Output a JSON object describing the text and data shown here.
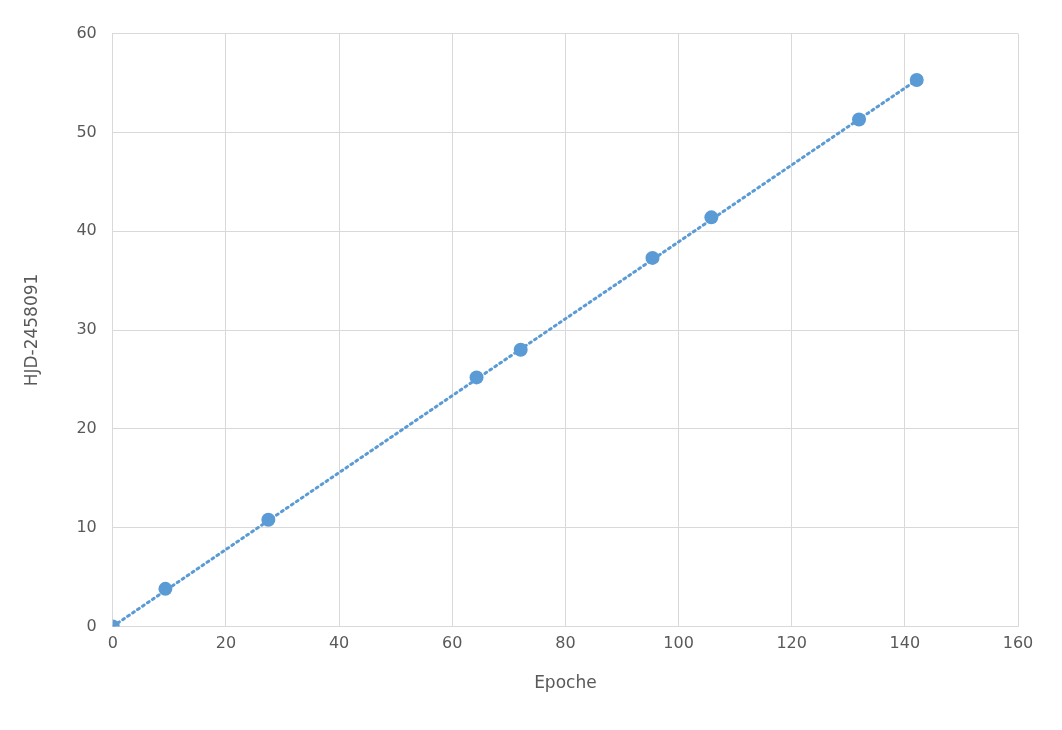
{
  "chart_data": {
    "type": "scatter",
    "xlabel": "Epoche",
    "ylabel": "HJD-2458091",
    "marker": "circle",
    "grid": true,
    "legend": false,
    "xlim": [
      0,
      160
    ],
    "xticks": [
      0,
      20,
      40,
      60,
      80,
      100,
      120,
      140,
      160
    ],
    "ylim": [
      0,
      60
    ],
    "yticks": [
      0,
      10,
      20,
      30,
      40,
      50,
      60
    ],
    "series": [
      {
        "color": "#5b9bd5",
        "x": [
          0,
          9.3,
          27.5,
          64.3,
          72.1,
          95.4,
          105.8,
          131.9,
          142.1
        ],
        "values": [
          0,
          3.8,
          10.8,
          25.2,
          28.0,
          37.3,
          41.4,
          51.3,
          55.3
        ]
      },
      {
        "type": "line",
        "color": "#5b9bd5",
        "marker": "none",
        "line_style": "dotted",
        "x": [
          0,
          142.1
        ],
        "values": [
          0,
          55.3
        ]
      }
    ]
  }
}
